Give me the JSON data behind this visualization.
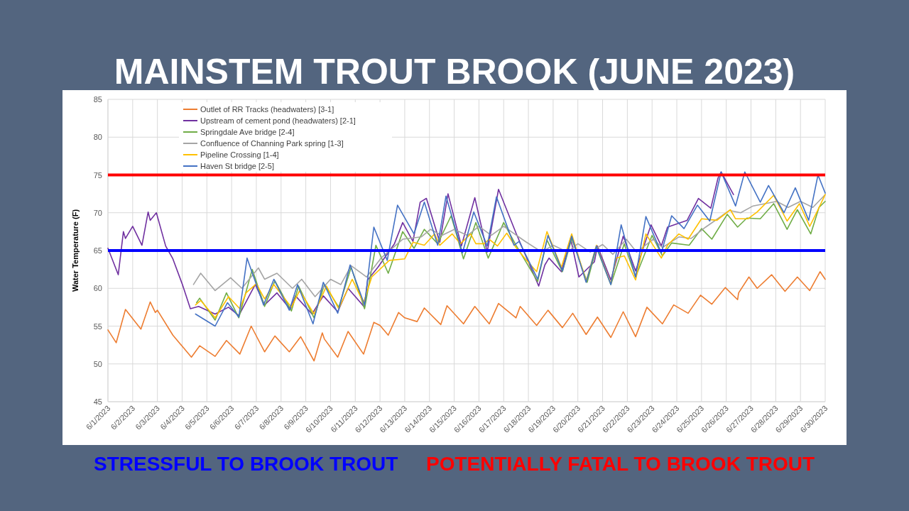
{
  "chart_data": {
    "type": "line",
    "title": "MAINSTEM TROUT BROOK (JUNE 2023)",
    "ylabel": "Water Temperature (F)",
    "xlim": [
      "2023-06-01",
      "2023-06-30"
    ],
    "xticks": [
      {
        "value": "2023-06-01",
        "label": "6/1/2023"
      },
      {
        "value": "2023-06-02",
        "label": "6/2/2023"
      },
      {
        "value": "2023-06-03",
        "label": "6/3/2023"
      },
      {
        "value": "2023-06-04",
        "label": "6/4/2023"
      },
      {
        "value": "2023-06-05",
        "label": "6/5/2023"
      },
      {
        "value": "2023-06-06",
        "label": "6/6/2023"
      },
      {
        "value": "2023-06-07",
        "label": "6/7/2023"
      },
      {
        "value": "2023-06-08",
        "label": "6/8/2023"
      },
      {
        "value": "2023-06-09",
        "label": "6/9/2023"
      },
      {
        "value": "2023-06-10",
        "label": "6/10/2023"
      },
      {
        "value": "2023-06-11",
        "label": "6/11/2023"
      },
      {
        "value": "2023-06-12",
        "label": "6/12/2023"
      },
      {
        "value": "2023-06-13",
        "label": "6/13/2023"
      },
      {
        "value": "2023-06-14",
        "label": "6/14/2023"
      },
      {
        "value": "2023-06-15",
        "label": "6/15/2023"
      },
      {
        "value": "2023-06-16",
        "label": "6/16/2023"
      },
      {
        "value": "2023-06-17",
        "label": "6/17/2023"
      },
      {
        "value": "2023-06-18",
        "label": "6/18/2023"
      },
      {
        "value": "2023-06-19",
        "label": "6/19/2023"
      },
      {
        "value": "2023-06-20",
        "label": "6/20/2023"
      },
      {
        "value": "2023-06-21",
        "label": "6/21/2023"
      },
      {
        "value": "2023-06-22",
        "label": "6/22/2023"
      },
      {
        "value": "2023-06-23",
        "label": "6/23/2023"
      },
      {
        "value": "2023-06-24",
        "label": "6/24/2023"
      },
      {
        "value": "2023-06-25",
        "label": "6/25/2023"
      },
      {
        "value": "2023-06-26",
        "label": "6/26/2023"
      },
      {
        "value": "2023-06-27",
        "label": "6/27/2023"
      },
      {
        "value": "2023-06-28",
        "label": "6/28/2023"
      },
      {
        "value": "2023-06-29",
        "label": "6/29/2023"
      },
      {
        "value": "2023-06-30",
        "label": "6/30/2023"
      }
    ],
    "ylim": [
      45,
      85
    ],
    "yticks": [
      45,
      50,
      55,
      60,
      65,
      70,
      75,
      80,
      85
    ],
    "grid": true,
    "legend": "top left",
    "ref_lines": [
      {
        "axis": "y",
        "value": 65,
        "label": "STRESSFUL TO BROOK TROUT",
        "color": "#0000ff"
      },
      {
        "axis": "y",
        "value": 75,
        "label": "POTENTIALLY FATAL TO BROOK TROUT",
        "color": "#ff0000"
      }
    ],
    "series": [
      {
        "name": "Outlet of RR Tracks (headwaters) [3-1]",
        "color": "#ed7d31",
        "x": [
          "2023-06-01T00:00",
          "2023-06-01T08:00",
          "2023-06-01T17:00",
          "2023-06-02T08:00",
          "2023-06-02T17:00",
          "2023-06-02T22:00",
          "2023-06-03T00:00",
          "2023-06-03T15:00",
          "2023-06-04T09:00",
          "2023-06-04T17:00",
          "2023-06-05T08:00",
          "2023-06-05T19:00",
          "2023-06-06T08:00",
          "2023-06-06T19:00",
          "2023-06-07T08:00",
          "2023-06-07T18:00",
          "2023-06-08T08:00",
          "2023-06-08T19:00",
          "2023-06-09T08:00",
          "2023-06-09T16:00",
          "2023-06-09T18:00",
          "2023-06-10T07:00",
          "2023-06-10T17:00",
          "2023-06-11T08:00",
          "2023-06-11T18:00",
          "2023-06-12T00:00",
          "2023-06-12T08:00",
          "2023-06-12T18:00",
          "2023-06-13T00:00",
          "2023-06-13T12:00",
          "2023-06-13T19:00",
          "2023-06-14T11:00",
          "2023-06-14T17:00",
          "2023-06-15T09:00",
          "2023-06-15T20:00",
          "2023-06-16T10:00",
          "2023-06-16T19:00",
          "2023-06-17T12:00",
          "2023-06-17T16:00",
          "2023-06-18T08:00",
          "2023-06-18T19:00",
          "2023-06-19T09:00",
          "2023-06-19T19:00",
          "2023-06-20T08:00",
          "2023-06-20T19:00",
          "2023-06-21T08:00",
          "2023-06-21T20:00",
          "2023-06-22T08:00",
          "2023-06-22T19:00",
          "2023-06-23T10:00",
          "2023-06-23T21:00",
          "2023-06-24T11:00",
          "2023-06-24T23:00",
          "2023-06-25T10:00",
          "2023-06-25T23:00",
          "2023-06-26T11:00",
          "2023-06-26T12:00",
          "2023-06-26T22:00",
          "2023-06-27T06:00",
          "2023-06-27T20:00",
          "2023-06-28T09:00",
          "2023-06-28T21:00",
          "2023-06-29T09:00",
          "2023-06-29T19:00",
          "2023-06-30T00:00"
        ],
        "values": [
          54.5,
          52.8,
          57.2,
          54.6,
          58.2,
          56.8,
          57.1,
          53.8,
          50.9,
          52.4,
          51.0,
          53.1,
          51.3,
          55.0,
          51.6,
          53.7,
          51.6,
          53.6,
          50.4,
          54.1,
          53.3,
          50.9,
          54.3,
          51.3,
          55.5,
          55.1,
          53.8,
          56.8,
          56.1,
          55.6,
          57.4,
          55.2,
          57.7,
          55.3,
          57.6,
          55.3,
          58.0,
          56.1,
          57.6,
          55.1,
          57.1,
          54.8,
          56.7,
          53.9,
          56.2,
          53.5,
          56.9,
          53.6,
          57.5,
          55.3,
          57.8,
          56.7,
          59.1,
          57.9,
          60.1,
          58.5,
          59.4,
          61.5,
          60.0,
          61.8,
          59.6,
          61.5,
          59.7,
          62.2,
          61.2
        ]
      },
      {
        "name": "Upstream of cement pond (headwaters) [2-1]",
        "color": "#7030a0",
        "x": [
          "2023-06-01T00:00",
          "2023-06-01T10:00",
          "2023-06-01T15:00",
          "2023-06-01T17:00",
          "2023-06-02T00:00",
          "2023-06-02T09:00",
          "2023-06-02T15:00",
          "2023-06-02T17:00",
          "2023-06-02T23:00",
          "2023-06-03T08:00",
          "2023-06-03T15:00",
          "2023-06-04T00:00",
          "2023-06-04T08:00",
          "2023-06-04T16:00",
          "2023-06-05T08:00",
          "2023-06-05T21:00",
          "2023-06-06T07:00",
          "2023-06-06T19:00",
          "2023-06-06T23:00",
          "2023-06-07T08:00",
          "2023-06-07T20:00",
          "2023-06-08T09:00",
          "2023-06-08T14:00",
          "2023-06-09T06:00",
          "2023-06-09T17:00",
          "2023-06-10T07:00",
          "2023-06-10T17:00",
          "2023-06-11T09:00",
          "2023-06-11T12:00",
          "2023-06-11T22:00",
          "2023-06-12T14:00",
          "2023-06-12T22:00",
          "2023-06-13T08:00",
          "2023-06-13T15:00",
          "2023-06-13T21:00",
          "2023-06-14T10:00",
          "2023-06-14T18:00",
          "2023-06-15T07:00",
          "2023-06-15T20:00",
          "2023-06-16T08:00",
          "2023-06-16T19:00",
          "2023-06-17T12:00",
          "2023-06-18T10:00",
          "2023-06-18T16:00",
          "2023-06-18T20:00",
          "2023-06-19T08:00",
          "2023-06-19T17:00",
          "2023-06-20T01:00",
          "2023-06-20T16:00",
          "2023-06-20T19:00",
          "2023-06-21T08:00",
          "2023-06-21T20:00",
          "2023-06-22T08:00",
          "2023-06-22T23:00",
          "2023-06-23T09:00",
          "2023-06-23T15:00",
          "2023-06-24T10:00",
          "2023-06-24T21:00",
          "2023-06-25T09:00",
          "2023-06-25T16:00",
          "2023-06-25T19:00",
          "2023-06-26T07:00"
        ],
        "values": [
          65.3,
          61.8,
          67.5,
          66.6,
          68.2,
          65.7,
          70.1,
          69.0,
          70.0,
          65.6,
          63.9,
          60.6,
          57.3,
          57.6,
          56.6,
          57.5,
          56.4,
          59.5,
          60.5,
          57.8,
          59.4,
          57.2,
          59.0,
          56.6,
          59.0,
          56.9,
          60.0,
          57.5,
          61.1,
          62.8,
          65.9,
          68.7,
          66.2,
          71.4,
          71.9,
          66.1,
          72.5,
          65.6,
          72.0,
          64.8,
          73.1,
          67.3,
          60.3,
          63.1,
          64.0,
          62.2,
          66.6,
          61.5,
          63.5,
          65.6,
          61.1,
          66.9,
          62.3,
          68.4,
          65.6,
          68.1,
          69.0,
          71.9,
          70.6,
          74.6,
          75.4,
          72.4
        ]
      },
      {
        "name": "Springdale Ave bridge [2-4]",
        "color": "#70ad47",
        "x": [
          "2023-06-04T14:00",
          "2023-06-04T17:00",
          "2023-06-05T08:00",
          "2023-06-05T19:00",
          "2023-06-06T07:00",
          "2023-06-06T20:00",
          "2023-06-07T08:00",
          "2023-06-07T18:00",
          "2023-06-08T10:00",
          "2023-06-08T17:00",
          "2023-06-09T08:00",
          "2023-06-09T18:00",
          "2023-06-10T08:00",
          "2023-06-10T20:00",
          "2023-06-11T09:00",
          "2023-06-11T20:00",
          "2023-06-12T08:00",
          "2023-06-12T22:00",
          "2023-06-13T09:00",
          "2023-06-13T19:00",
          "2023-06-14T08:00",
          "2023-06-14T21:00",
          "2023-06-15T09:00",
          "2023-06-15T21:00",
          "2023-06-16T09:00",
          "2023-06-17T00:00",
          "2023-06-17T12:00",
          "2023-06-18T09:00",
          "2023-06-18T18:00",
          "2023-06-19T09:00",
          "2023-06-19T18:00",
          "2023-06-20T09:00",
          "2023-06-20T18:00",
          "2023-06-21T08:00",
          "2023-06-21T21:00",
          "2023-06-22T08:00",
          "2023-06-23T00:00",
          "2023-06-23T10:00",
          "2023-06-23T19:00",
          "2023-06-24T12:00",
          "2023-06-25T00:00",
          "2023-06-25T10:00",
          "2023-06-26T01:00",
          "2023-06-26T11:00",
          "2023-06-26T20:00",
          "2023-06-27T09:00",
          "2023-06-27T22:00",
          "2023-06-28T11:00",
          "2023-06-28T21:00",
          "2023-06-29T10:00",
          "2023-06-29T18:00",
          "2023-06-30T00:00"
        ],
        "values": [
          58.1,
          58.7,
          55.8,
          59.4,
          56.1,
          62.5,
          57.6,
          61.0,
          57.0,
          60.3,
          56.1,
          60.5,
          57.5,
          62.8,
          57.3,
          65.7,
          62.0,
          67.5,
          65.3,
          67.8,
          65.9,
          69.6,
          63.9,
          68.7,
          64.0,
          68.7,
          65.7,
          60.9,
          66.4,
          62.2,
          66.6,
          60.8,
          65.4,
          60.5,
          65.9,
          61.5,
          67.0,
          64.3,
          66.0,
          65.7,
          67.9,
          66.5,
          69.8,
          68.1,
          69.3,
          69.2,
          71.2,
          67.8,
          70.4,
          67.2,
          70.7,
          71.5
        ]
      },
      {
        "name": "Confluence of Channing Park spring [1-3]",
        "color": "#a5a5a5",
        "x": [
          "2023-06-04T11:00",
          "2023-06-04T18:00",
          "2023-06-05T08:00",
          "2023-06-05T23:00",
          "2023-06-06T10:00",
          "2023-06-07T02:00",
          "2023-06-07T08:00",
          "2023-06-07T20:00",
          "2023-06-08T11:00",
          "2023-06-08T20:00",
          "2023-06-09T09:00",
          "2023-06-10T00:00",
          "2023-06-10T10:00",
          "2023-06-10T20:00",
          "2023-06-11T11:00",
          "2023-06-12T01:00",
          "2023-06-12T22:00",
          "2023-06-13T16:00",
          "2023-06-14T01:00",
          "2023-06-14T12:00",
          "2023-06-15T00:00",
          "2023-06-15T13:00",
          "2023-06-16T00:00",
          "2023-06-16T12:00",
          "2023-06-17T00:00",
          "2023-06-17T21:00",
          "2023-06-18T13:00",
          "2023-06-19T00:00",
          "2023-06-19T14:00",
          "2023-06-20T00:00",
          "2023-06-20T12:00",
          "2023-06-21T00:00",
          "2023-06-21T10:00",
          "2023-06-21T23:00",
          "2023-06-22T09:00",
          "2023-06-23T01:00",
          "2023-06-23T10:00",
          "2023-06-24T02:00",
          "2023-06-24T14:00",
          "2023-06-25T04:00",
          "2023-06-26T03:00",
          "2023-06-26T14:00",
          "2023-06-27T02:00",
          "2023-06-28T01:00",
          "2023-06-28T12:00",
          "2023-06-29T00:00",
          "2023-06-29T12:00",
          "2023-06-30T00:00"
        ],
        "values": [
          60.5,
          62.0,
          59.7,
          61.4,
          60.0,
          62.7,
          61.2,
          62.0,
          60.0,
          61.2,
          58.9,
          61.2,
          60.5,
          63.0,
          61.5,
          64.0,
          66.5,
          66.8,
          67.8,
          67.0,
          67.8,
          67.0,
          68.2,
          67.0,
          68.2,
          66.2,
          64.8,
          65.7,
          64.8,
          65.9,
          64.8,
          65.8,
          64.5,
          66.5,
          64.8,
          66.5,
          65.4,
          66.8,
          66.6,
          68.1,
          70.3,
          70.0,
          70.9,
          71.5,
          70.7,
          71.5,
          70.7,
          72.4
        ]
      },
      {
        "name": "Pipeline Crossing [1-4]",
        "color": "#ffc000",
        "x": [
          "2023-06-04T13:00",
          "2023-06-04T18:00",
          "2023-06-05T08:00",
          "2023-06-05T21:00",
          "2023-06-06T08:00",
          "2023-06-06T14:00",
          "2023-06-07T00:00",
          "2023-06-07T08:00",
          "2023-06-07T17:00",
          "2023-06-08T10:00",
          "2023-06-08T18:00",
          "2023-06-09T08:00",
          "2023-06-09T20:00",
          "2023-06-10T08:00",
          "2023-06-10T21:00",
          "2023-06-11T08:00",
          "2023-06-11T16:00",
          "2023-06-12T09:00",
          "2023-06-13T00:00",
          "2023-06-13T08:00",
          "2023-06-13T19:00",
          "2023-06-14T05:00",
          "2023-06-14T10:00",
          "2023-06-14T22:00",
          "2023-06-15T06:00",
          "2023-06-15T16:00",
          "2023-06-15T21:00",
          "2023-06-16T05:00",
          "2023-06-16T10:00",
          "2023-06-16T18:00",
          "2023-06-17T03:00",
          "2023-06-17T12:00",
          "2023-06-17T21:00",
          "2023-06-18T08:00",
          "2023-06-18T18:00",
          "2023-06-19T08:00",
          "2023-06-19T18:00",
          "2023-06-20T08:00",
          "2023-06-20T18:00",
          "2023-06-21T08:00",
          "2023-06-21T13:00",
          "2023-06-21T21:00",
          "2023-06-22T08:00",
          "2023-06-22T18:00",
          "2023-06-23T09:00",
          "2023-06-23T15:00",
          "2023-06-24T02:00",
          "2023-06-24T11:00",
          "2023-06-25T00:00",
          "2023-06-25T15:00",
          "2023-06-26T04:00",
          "2023-06-26T09:00",
          "2023-06-26T21:00",
          "2023-06-27T06:00",
          "2023-06-27T22:00",
          "2023-06-28T11:00",
          "2023-06-28T23:00",
          "2023-06-29T09:00",
          "2023-06-29T17:00",
          "2023-06-30T00:00"
        ],
        "values": [
          57.8,
          58.4,
          56.1,
          58.9,
          57.3,
          59.4,
          60.6,
          58.6,
          60.5,
          57.5,
          59.7,
          56.6,
          60.3,
          57.3,
          61.2,
          58.1,
          61.5,
          63.7,
          63.9,
          66.1,
          65.7,
          67.2,
          65.7,
          67.2,
          65.9,
          67.2,
          65.9,
          65.9,
          66.5,
          65.6,
          67.3,
          65.4,
          63.9,
          62.2,
          67.5,
          62.8,
          67.2,
          60.9,
          65.7,
          60.6,
          64.0,
          64.3,
          61.1,
          67.2,
          64.0,
          65.7,
          67.2,
          66.5,
          69.2,
          69.0,
          70.4,
          69.2,
          69.2,
          70.1,
          72.3,
          68.9,
          71.2,
          68.2,
          70.4,
          72.4
        ]
      },
      {
        "name": "Haven St bridge [2-5]",
        "color": "#4472c4",
        "x": [
          "2023-06-04T13:00",
          "2023-06-05T08:00",
          "2023-06-05T20:00",
          "2023-06-06T07:00",
          "2023-06-06T15:00",
          "2023-06-07T07:00",
          "2023-06-07T17:00",
          "2023-06-08T08:00",
          "2023-06-08T16:00",
          "2023-06-09T07:00",
          "2023-06-09T17:00",
          "2023-06-10T07:00",
          "2023-06-10T19:00",
          "2023-06-11T09:00",
          "2023-06-11T18:00",
          "2023-06-12T07:00",
          "2023-06-12T17:00",
          "2023-06-13T09:00",
          "2023-06-13T19:00",
          "2023-06-14T08:00",
          "2023-06-14T16:00",
          "2023-06-15T08:00",
          "2023-06-15T19:00",
          "2023-06-16T08:00",
          "2023-06-16T17:00",
          "2023-06-17T10:00",
          "2023-06-17T15:00",
          "2023-06-18T09:00",
          "2023-06-18T19:00",
          "2023-06-19T09:00",
          "2023-06-19T18:00",
          "2023-06-20T08:00",
          "2023-06-20T18:00",
          "2023-06-21T08:00",
          "2023-06-21T18:00",
          "2023-06-22T08:00",
          "2023-06-22T18:00",
          "2023-06-23T09:00",
          "2023-06-23T19:00",
          "2023-06-24T07:00",
          "2023-06-24T20:00",
          "2023-06-25T08:00",
          "2023-06-25T19:00",
          "2023-06-26T09:00",
          "2023-06-26T18:00",
          "2023-06-27T09:00",
          "2023-06-27T17:00",
          "2023-06-28T08:00",
          "2023-06-28T19:00",
          "2023-06-29T08:00",
          "2023-06-29T17:00",
          "2023-06-30T00:00"
        ],
        "values": [
          56.6,
          55.0,
          58.1,
          56.2,
          64.0,
          57.8,
          61.2,
          57.1,
          60.5,
          55.3,
          60.8,
          56.7,
          63.1,
          57.8,
          68.1,
          63.7,
          71.0,
          67.2,
          71.4,
          65.7,
          72.2,
          64.7,
          70.1,
          65.6,
          72.1,
          65.7,
          66.2,
          61.2,
          67.0,
          62.3,
          66.9,
          60.8,
          65.6,
          60.5,
          68.4,
          61.5,
          69.5,
          64.7,
          69.6,
          67.9,
          71.0,
          68.9,
          75.4,
          70.9,
          75.4,
          71.4,
          73.6,
          70.0,
          73.3,
          69.0,
          75.0,
          72.6
        ]
      }
    ]
  }
}
